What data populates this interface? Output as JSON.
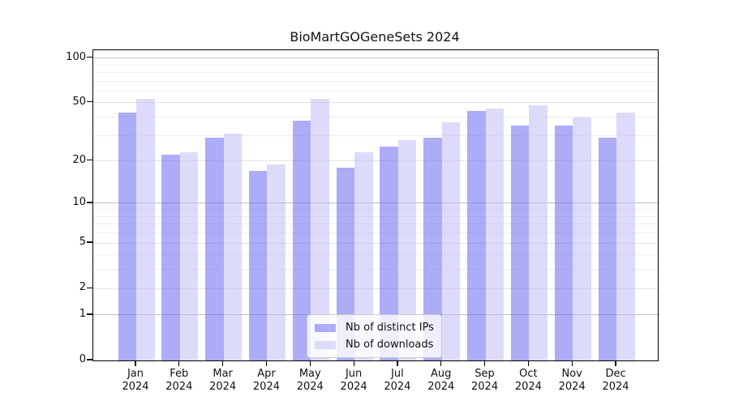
{
  "title": "BioMartGOGeneSets 2024",
  "colors": {
    "bar_distinct_ips": "#acacf7",
    "bar_downloads": "#dbdbfa",
    "bar_distinct_ips_rgba": "rgba(90,90,240,0.5)",
    "bar_downloads_rgba": "rgba(185,185,245,0.5)",
    "grid_decade": "#c0c0c0",
    "grid_labeled": "#e3e3e3",
    "grid_minor": "#eeeeee",
    "axis": "#000000"
  },
  "chart_data": {
    "type": "bar",
    "title": "BioMartGOGeneSets 2024",
    "categories": [
      "Jan 2024",
      "Feb 2024",
      "Mar 2024",
      "Apr 2024",
      "May 2024",
      "Jun 2024",
      "Jul 2024",
      "Aug 2024",
      "Sep 2024",
      "Oct 2024",
      "Nov 2024",
      "Dec 2024"
    ],
    "series": [
      {
        "name": "Nb of distinct IPs",
        "color": "#acacf7",
        "values": [
          43,
          22,
          29,
          17,
          38,
          18,
          25,
          29,
          44,
          35,
          35,
          29
        ]
      },
      {
        "name": "Nb of downloads",
        "color": "#dbdbfa",
        "values": [
          53,
          23,
          31,
          19,
          53,
          23,
          28,
          37,
          46,
          48,
          40,
          43
        ]
      }
    ],
    "xlabel": "",
    "ylabel": "",
    "yscale": "log10(value+1)",
    "ylim": [
      0,
      113
    ],
    "yticks": [
      0,
      1,
      2,
      5,
      10,
      20,
      50,
      100
    ],
    "grid": true,
    "gridlines": {
      "decade": [
        1,
        10,
        100
      ],
      "labeled": [
        2,
        5,
        20,
        50
      ],
      "minor": [
        3,
        4,
        6,
        7,
        8,
        9,
        30,
        40,
        60,
        70,
        80,
        90
      ]
    },
    "legend_position": "lower center"
  },
  "legend": {
    "items": [
      {
        "label": "Nb of distinct IPs",
        "swatch_color": "#acacf7"
      },
      {
        "label": "Nb of downloads",
        "swatch_color": "#dbdbfa"
      }
    ]
  }
}
